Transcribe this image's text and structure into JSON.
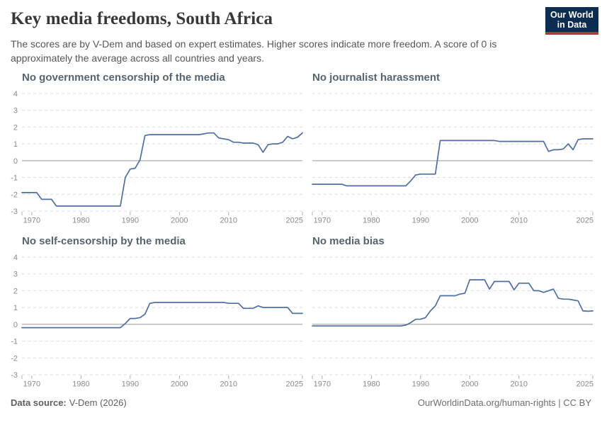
{
  "header": {
    "title": "Key media freedoms, South Africa",
    "subtitle": "The scores are by V-Dem and based on expert estimates. Higher scores indicate more freedom. A score of 0 is approximately the average across all countries and years.",
    "logo": {
      "line1": "Our World",
      "line2": "in Data"
    }
  },
  "footer": {
    "source_label": "Data source:",
    "source_value": "V-Dem (2026)",
    "right_text": "OurWorldinData.org/human-rights | CC BY"
  },
  "colors": {
    "line": "#4d6fa3",
    "grid": "#dcdcdc",
    "zero_line": "#979797",
    "axis_tick": "#b0b0b0",
    "tick_label": "#8a8a8a",
    "panel_title": "#566470",
    "logo_bg": "#0c2c52",
    "logo_stripe": "#ab3a40"
  },
  "chart_data": [
    {
      "type": "line",
      "title": "No government censorship of the media",
      "series": "South Africa",
      "xlim": [
        1968,
        2025
      ],
      "ylim": [
        -3,
        4
      ],
      "yticks": [
        -3,
        -2,
        -1,
        0,
        1,
        2,
        3,
        4
      ],
      "xticks": [
        1970,
        1980,
        1990,
        2000,
        2010,
        2025
      ],
      "grid": true,
      "show_y_labels": true,
      "years": [
        1968,
        1969,
        1970,
        1971,
        1972,
        1973,
        1974,
        1975,
        1976,
        1977,
        1978,
        1979,
        1980,
        1981,
        1982,
        1983,
        1984,
        1985,
        1986,
        1987,
        1988,
        1989,
        1990,
        1991,
        1992,
        1993,
        1994,
        1995,
        1996,
        1997,
        1998,
        1999,
        2000,
        2001,
        2002,
        2003,
        2004,
        2005,
        2006,
        2007,
        2008,
        2009,
        2010,
        2011,
        2012,
        2013,
        2014,
        2015,
        2016,
        2017,
        2018,
        2019,
        2020,
        2021,
        2022,
        2023,
        2024,
        2025
      ],
      "values": [
        -1.9,
        -1.9,
        -1.9,
        -1.9,
        -2.3,
        -2.3,
        -2.3,
        -2.7,
        -2.7,
        -2.7,
        -2.7,
        -2.7,
        -2.7,
        -2.7,
        -2.7,
        -2.7,
        -2.7,
        -2.7,
        -2.7,
        -2.7,
        -2.7,
        -1.0,
        -0.5,
        -0.45,
        0.05,
        1.5,
        1.55,
        1.55,
        1.55,
        1.55,
        1.55,
        1.55,
        1.55,
        1.55,
        1.55,
        1.55,
        1.55,
        1.6,
        1.65,
        1.65,
        1.35,
        1.3,
        1.25,
        1.1,
        1.1,
        1.05,
        1.05,
        1.05,
        0.95,
        0.5,
        0.95,
        1.0,
        1.0,
        1.1,
        1.45,
        1.3,
        1.4,
        1.65
      ]
    },
    {
      "type": "line",
      "title": "No journalist harassment",
      "series": "South Africa",
      "xlim": [
        1968,
        2025
      ],
      "ylim": [
        -3,
        4
      ],
      "yticks": [
        -3,
        -2,
        -1,
        0,
        1,
        2,
        3,
        4
      ],
      "xticks": [
        1970,
        1980,
        1990,
        2000,
        2010,
        2025
      ],
      "grid": true,
      "show_y_labels": false,
      "years": [
        1968,
        1969,
        1970,
        1971,
        1972,
        1973,
        1974,
        1975,
        1976,
        1977,
        1978,
        1979,
        1980,
        1981,
        1982,
        1983,
        1984,
        1985,
        1986,
        1987,
        1988,
        1989,
        1990,
        1991,
        1992,
        1993,
        1994,
        1995,
        1996,
        1997,
        1998,
        1999,
        2000,
        2001,
        2002,
        2003,
        2004,
        2005,
        2006,
        2007,
        2008,
        2009,
        2010,
        2011,
        2012,
        2013,
        2014,
        2015,
        2016,
        2017,
        2018,
        2019,
        2020,
        2021,
        2022,
        2023,
        2024,
        2025
      ],
      "values": [
        -1.4,
        -1.4,
        -1.4,
        -1.4,
        -1.4,
        -1.4,
        -1.4,
        -1.5,
        -1.5,
        -1.5,
        -1.5,
        -1.5,
        -1.5,
        -1.5,
        -1.5,
        -1.5,
        -1.5,
        -1.5,
        -1.5,
        -1.5,
        -1.2,
        -0.85,
        -0.8,
        -0.8,
        -0.8,
        -0.8,
        1.2,
        1.2,
        1.2,
        1.2,
        1.2,
        1.2,
        1.2,
        1.2,
        1.2,
        1.2,
        1.2,
        1.2,
        1.15,
        1.15,
        1.15,
        1.15,
        1.15,
        1.15,
        1.15,
        1.15,
        1.15,
        1.15,
        0.55,
        0.65,
        0.65,
        0.7,
        1.0,
        0.65,
        1.25,
        1.3,
        1.3,
        1.3
      ]
    },
    {
      "type": "line",
      "title": "No self-censorship by the media",
      "series": "South Africa",
      "xlim": [
        1968,
        2025
      ],
      "ylim": [
        -3,
        4
      ],
      "yticks": [
        -3,
        -2,
        -1,
        0,
        1,
        2,
        3,
        4
      ],
      "xticks": [
        1970,
        1980,
        1990,
        2000,
        2010,
        2025
      ],
      "grid": true,
      "show_y_labels": true,
      "years": [
        1968,
        1969,
        1970,
        1971,
        1972,
        1973,
        1974,
        1975,
        1976,
        1977,
        1978,
        1979,
        1980,
        1981,
        1982,
        1983,
        1984,
        1985,
        1986,
        1987,
        1988,
        1989,
        1990,
        1991,
        1992,
        1993,
        1994,
        1995,
        1996,
        1997,
        1998,
        1999,
        2000,
        2001,
        2002,
        2003,
        2004,
        2005,
        2006,
        2007,
        2008,
        2009,
        2010,
        2011,
        2012,
        2013,
        2014,
        2015,
        2016,
        2017,
        2018,
        2019,
        2020,
        2021,
        2022,
        2023,
        2024,
        2025
      ],
      "values": [
        -0.2,
        -0.2,
        -0.2,
        -0.2,
        -0.2,
        -0.2,
        -0.2,
        -0.2,
        -0.2,
        -0.2,
        -0.2,
        -0.2,
        -0.2,
        -0.2,
        -0.2,
        -0.2,
        -0.2,
        -0.2,
        -0.2,
        -0.2,
        -0.2,
        0.05,
        0.35,
        0.35,
        0.4,
        0.6,
        1.25,
        1.3,
        1.3,
        1.3,
        1.3,
        1.3,
        1.3,
        1.3,
        1.3,
        1.3,
        1.3,
        1.3,
        1.3,
        1.3,
        1.3,
        1.3,
        1.25,
        1.25,
        1.25,
        0.95,
        0.95,
        0.95,
        1.1,
        1.0,
        1.0,
        1.0,
        1.0,
        1.0,
        1.0,
        0.65,
        0.65,
        0.65
      ]
    },
    {
      "type": "line",
      "title": "No media bias",
      "series": "South Africa",
      "xlim": [
        1968,
        2025
      ],
      "ylim": [
        -3,
        4
      ],
      "yticks": [
        -3,
        -2,
        -1,
        0,
        1,
        2,
        3,
        4
      ],
      "xticks": [
        1970,
        1980,
        1990,
        2000,
        2010,
        2025
      ],
      "grid": true,
      "show_y_labels": false,
      "years": [
        1968,
        1969,
        1970,
        1971,
        1972,
        1973,
        1974,
        1975,
        1976,
        1977,
        1978,
        1979,
        1980,
        1981,
        1982,
        1983,
        1984,
        1985,
        1986,
        1987,
        1988,
        1989,
        1990,
        1991,
        1992,
        1993,
        1994,
        1995,
        1996,
        1997,
        1998,
        1999,
        2000,
        2001,
        2002,
        2003,
        2004,
        2005,
        2006,
        2007,
        2008,
        2009,
        2010,
        2011,
        2012,
        2013,
        2014,
        2015,
        2016,
        2017,
        2018,
        2019,
        2020,
        2021,
        2022,
        2023,
        2024,
        2025
      ],
      "values": [
        -0.1,
        -0.1,
        -0.1,
        -0.1,
        -0.1,
        -0.1,
        -0.1,
        -0.1,
        -0.1,
        -0.1,
        -0.1,
        -0.1,
        -0.1,
        -0.1,
        -0.1,
        -0.1,
        -0.1,
        -0.1,
        -0.1,
        -0.05,
        0.1,
        0.3,
        0.3,
        0.4,
        0.8,
        1.1,
        1.7,
        1.7,
        1.7,
        1.7,
        1.8,
        1.85,
        2.65,
        2.65,
        2.65,
        2.65,
        2.1,
        2.55,
        2.55,
        2.55,
        2.55,
        2.05,
        2.45,
        2.45,
        2.45,
        2.0,
        2.0,
        1.9,
        2.0,
        2.1,
        1.55,
        1.5,
        1.5,
        1.45,
        1.4,
        0.8,
        0.78,
        0.8
      ]
    }
  ]
}
